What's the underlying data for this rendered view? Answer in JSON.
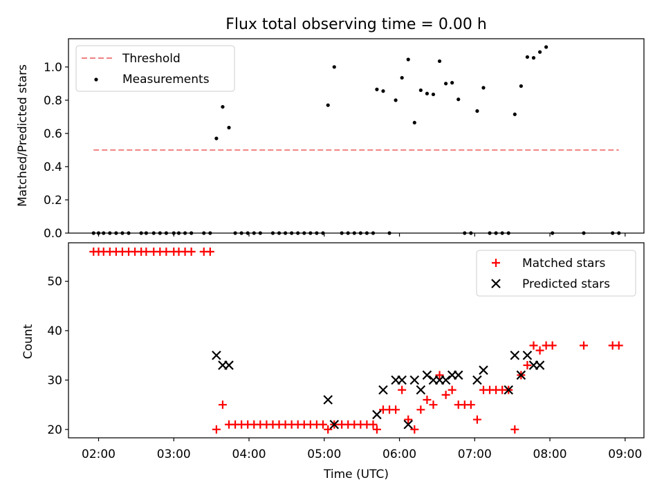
{
  "title": "Flux total observing time = 0.00 h",
  "x_axis": {
    "label": "Time (UTC)",
    "ticks": [
      "02:00",
      "03:00",
      "04:00",
      "05:00",
      "06:00",
      "07:00",
      "08:00",
      "09:00"
    ],
    "range_hours": [
      1.6,
      9.25
    ]
  },
  "colors": {
    "threshold": "#f08080",
    "measurements": "#000000",
    "matched": "#ff0000",
    "predicted": "#000000"
  },
  "chart_data": [
    {
      "type": "scatter",
      "ylabel": "Matched/Predicted stars",
      "ylim": [
        0,
        1.17
      ],
      "yticks": [
        "0.0",
        "0.2",
        "0.4",
        "0.6",
        "0.8",
        "1.0"
      ],
      "legend_position": "top-left",
      "threshold": {
        "name": "Threshold",
        "value": 0.5,
        "x_range": [
          "01:56",
          "08:55"
        ]
      },
      "series": [
        {
          "name": "Measurements",
          "marker": "dot",
          "points": [
            [
              "01:56",
              0
            ],
            [
              "02:00",
              0
            ],
            [
              "02:04",
              0
            ],
            [
              "02:09",
              0
            ],
            [
              "02:14",
              0
            ],
            [
              "02:19",
              0
            ],
            [
              "02:24",
              0
            ],
            [
              "02:34",
              0
            ],
            [
              "02:38",
              0
            ],
            [
              "02:44",
              0
            ],
            [
              "02:49",
              0
            ],
            [
              "02:54",
              0
            ],
            [
              "03:00",
              0
            ],
            [
              "03:04",
              0
            ],
            [
              "03:09",
              0
            ],
            [
              "03:14",
              0
            ],
            [
              "03:24",
              0
            ],
            [
              "03:29",
              0
            ],
            [
              "03:34",
              0.57
            ],
            [
              "03:39",
              0.76
            ],
            [
              "03:44",
              0.635
            ],
            [
              "03:49",
              0
            ],
            [
              "03:54",
              0
            ],
            [
              "03:59",
              0
            ],
            [
              "04:04",
              0
            ],
            [
              "04:09",
              0
            ],
            [
              "04:19",
              0
            ],
            [
              "04:24",
              0
            ],
            [
              "04:29",
              0
            ],
            [
              "04:34",
              0
            ],
            [
              "04:39",
              0
            ],
            [
              "04:44",
              0
            ],
            [
              "04:49",
              0
            ],
            [
              "04:54",
              0
            ],
            [
              "04:59",
              0
            ],
            [
              "05:03",
              0.77
            ],
            [
              "05:08",
              1.0
            ],
            [
              "05:14",
              0
            ],
            [
              "05:19",
              0
            ],
            [
              "05:24",
              0
            ],
            [
              "05:29",
              0
            ],
            [
              "05:34",
              0
            ],
            [
              "05:39",
              0
            ],
            [
              "05:42",
              0.865
            ],
            [
              "05:47",
              0.855
            ],
            [
              "05:52",
              0
            ],
            [
              "05:57",
              0.8
            ],
            [
              "06:02",
              0.935
            ],
            [
              "06:07",
              1.045
            ],
            [
              "06:12",
              0.665
            ],
            [
              "06:17",
              0.86
            ],
            [
              "06:22",
              0.84
            ],
            [
              "06:27",
              0.835
            ],
            [
              "06:32",
              1.035
            ],
            [
              "06:37",
              0.9
            ],
            [
              "06:42",
              0.905
            ],
            [
              "06:47",
              0.805
            ],
            [
              "06:52",
              0
            ],
            [
              "06:57",
              0
            ],
            [
              "07:02",
              0.735
            ],
            [
              "07:07",
              0.875
            ],
            [
              "07:12",
              0
            ],
            [
              "07:17",
              0
            ],
            [
              "07:22",
              0
            ],
            [
              "07:27",
              0
            ],
            [
              "07:32",
              0.715
            ],
            [
              "07:37",
              0.885
            ],
            [
              "07:42",
              1.06
            ],
            [
              "07:47",
              1.055
            ],
            [
              "07:52",
              1.09
            ],
            [
              "07:57",
              1.12
            ],
            [
              "08:02",
              0
            ],
            [
              "08:27",
              0
            ],
            [
              "08:50",
              0
            ],
            [
              "08:55",
              0
            ]
          ]
        }
      ]
    },
    {
      "type": "scatter",
      "xlabel": "Time (UTC)",
      "ylabel": "Count",
      "ylim": [
        18.3,
        57.8
      ],
      "yticks": [
        "20",
        "30",
        "40",
        "50"
      ],
      "legend_position": "top-right",
      "series": [
        {
          "name": "Matched stars",
          "marker": "plus",
          "points": [
            [
              "01:56",
              56
            ],
            [
              "02:00",
              56
            ],
            [
              "02:04",
              56
            ],
            [
              "02:09",
              56
            ],
            [
              "02:14",
              56
            ],
            [
              "02:19",
              56
            ],
            [
              "02:24",
              56
            ],
            [
              "02:29",
              56
            ],
            [
              "02:34",
              56
            ],
            [
              "02:38",
              56
            ],
            [
              "02:44",
              56
            ],
            [
              "02:49",
              56
            ],
            [
              "02:54",
              56
            ],
            [
              "03:00",
              56
            ],
            [
              "03:04",
              56
            ],
            [
              "03:09",
              56
            ],
            [
              "03:14",
              56
            ],
            [
              "03:24",
              56
            ],
            [
              "03:29",
              56
            ],
            [
              "03:34",
              20
            ],
            [
              "03:39",
              25
            ],
            [
              "03:44",
              21
            ],
            [
              "03:49",
              21
            ],
            [
              "03:54",
              21
            ],
            [
              "03:59",
              21
            ],
            [
              "04:04",
              21
            ],
            [
              "04:09",
              21
            ],
            [
              "04:14",
              21
            ],
            [
              "04:19",
              21
            ],
            [
              "04:24",
              21
            ],
            [
              "04:29",
              21
            ],
            [
              "04:34",
              21
            ],
            [
              "04:39",
              21
            ],
            [
              "04:44",
              21
            ],
            [
              "04:49",
              21
            ],
            [
              "04:54",
              21
            ],
            [
              "04:59",
              21
            ],
            [
              "05:03",
              20
            ],
            [
              "05:08",
              21
            ],
            [
              "05:14",
              21
            ],
            [
              "05:19",
              21
            ],
            [
              "05:24",
              21
            ],
            [
              "05:29",
              21
            ],
            [
              "05:34",
              21
            ],
            [
              "05:39",
              21
            ],
            [
              "05:42",
              20
            ],
            [
              "05:47",
              24
            ],
            [
              "05:52",
              24
            ],
            [
              "05:57",
              24
            ],
            [
              "06:02",
              28
            ],
            [
              "06:07",
              22
            ],
            [
              "06:12",
              20
            ],
            [
              "06:17",
              24
            ],
            [
              "06:22",
              26
            ],
            [
              "06:27",
              25
            ],
            [
              "06:32",
              31
            ],
            [
              "06:37",
              27
            ],
            [
              "06:42",
              28
            ],
            [
              "06:47",
              25
            ],
            [
              "06:52",
              25
            ],
            [
              "06:57",
              25
            ],
            [
              "07:02",
              22
            ],
            [
              "07:07",
              28
            ],
            [
              "07:12",
              28
            ],
            [
              "07:17",
              28
            ],
            [
              "07:22",
              28
            ],
            [
              "07:27",
              28
            ],
            [
              "07:32",
              20
            ],
            [
              "07:37",
              31
            ],
            [
              "07:42",
              33
            ],
            [
              "07:47",
              37
            ],
            [
              "07:52",
              36
            ],
            [
              "07:57",
              37
            ],
            [
              "08:02",
              37
            ],
            [
              "08:27",
              37
            ],
            [
              "08:50",
              37
            ],
            [
              "08:55",
              37
            ]
          ]
        },
        {
          "name": "Predicted stars",
          "marker": "x",
          "points": [
            [
              "03:34",
              35
            ],
            [
              "03:39",
              33
            ],
            [
              "03:44",
              33
            ],
            [
              "05:03",
              26
            ],
            [
              "05:08",
              21
            ],
            [
              "05:42",
              23
            ],
            [
              "05:47",
              28
            ],
            [
              "05:57",
              30
            ],
            [
              "06:02",
              30
            ],
            [
              "06:07",
              21
            ],
            [
              "06:12",
              30
            ],
            [
              "06:17",
              28
            ],
            [
              "06:22",
              31
            ],
            [
              "06:27",
              30
            ],
            [
              "06:32",
              30
            ],
            [
              "06:37",
              30
            ],
            [
              "06:42",
              31
            ],
            [
              "06:47",
              31
            ],
            [
              "07:02",
              30
            ],
            [
              "07:07",
              32
            ],
            [
              "07:27",
              28
            ],
            [
              "07:32",
              35
            ],
            [
              "07:37",
              31
            ],
            [
              "07:42",
              35
            ],
            [
              "07:47",
              33
            ],
            [
              "07:52",
              33
            ]
          ]
        }
      ]
    }
  ]
}
